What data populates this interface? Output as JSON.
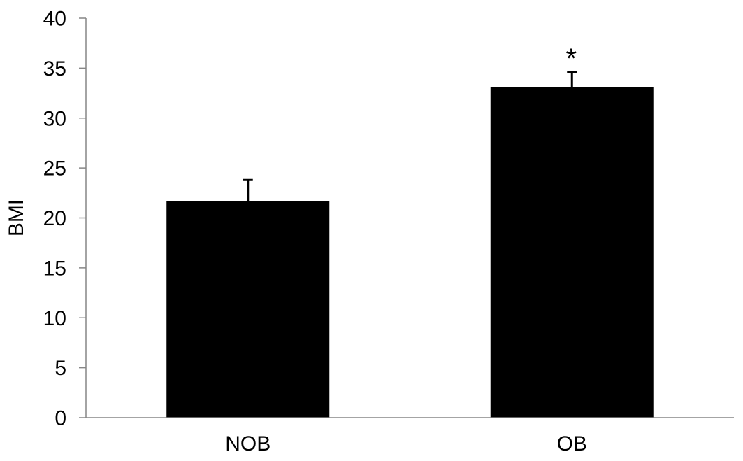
{
  "chart_data": {
    "type": "bar",
    "title": "",
    "xlabel": "",
    "ylabel": "BMI",
    "ylim": [
      0,
      40
    ],
    "yticks": [
      0,
      5,
      10,
      15,
      20,
      25,
      30,
      35,
      40
    ],
    "categories": [
      "NOB",
      "OB"
    ],
    "values": [
      21.7,
      33.1
    ],
    "error": [
      2.1,
      1.5
    ],
    "annotations": [
      {
        "category": "OB",
        "text": "*"
      }
    ],
    "grid": false,
    "legend": "none",
    "bar_color": "#000000",
    "axis_color": "#868686"
  }
}
